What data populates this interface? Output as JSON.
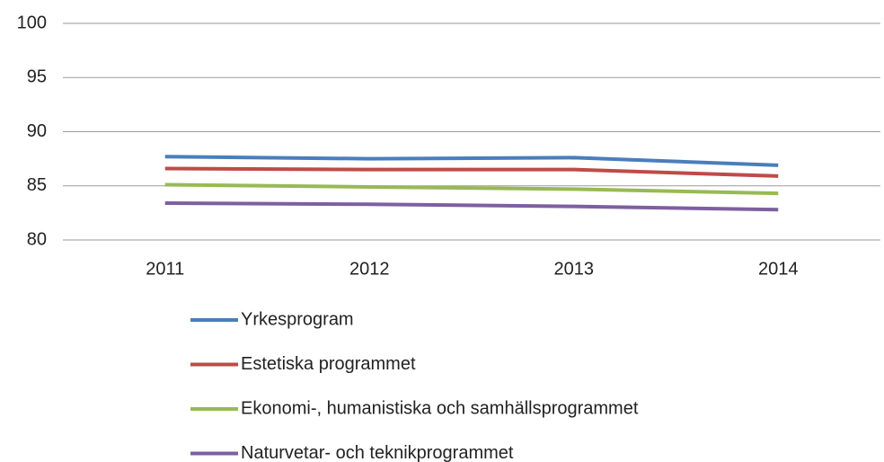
{
  "chart_data": {
    "type": "line",
    "categories": [
      "2011",
      "2012",
      "2013",
      "2014"
    ],
    "series": [
      {
        "name": "Yrkesprogram",
        "color": "#4a7ebb",
        "values": [
          87.7,
          87.5,
          87.6,
          86.9
        ]
      },
      {
        "name": "Estetiska programmet",
        "color": "#be4b48",
        "values": [
          86.6,
          86.5,
          86.5,
          85.9
        ]
      },
      {
        "name": "Ekonomi-, humanistiska och samhällsprogrammet",
        "color": "#98b954",
        "values": [
          85.1,
          84.9,
          84.7,
          84.3
        ]
      },
      {
        "name": "Naturvetar- och teknikprogrammet",
        "color": "#7d60a0",
        "values": [
          83.4,
          83.3,
          83.1,
          82.8
        ]
      }
    ],
    "ylim": [
      80,
      100
    ],
    "yticks": [
      80,
      85,
      90,
      95,
      100
    ],
    "grid": true,
    "legend": "bottom"
  }
}
